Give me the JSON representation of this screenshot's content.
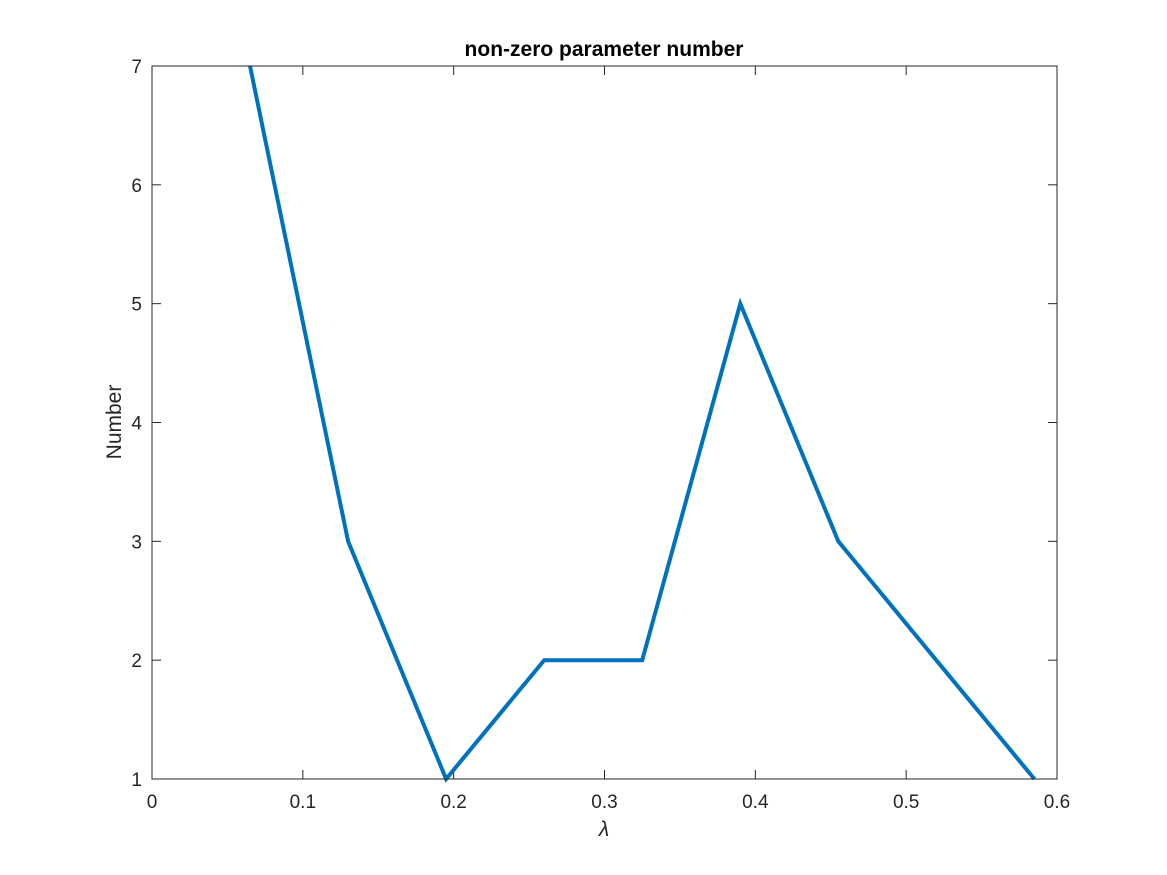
{
  "chart_data": {
    "type": "line",
    "title": "non-zero parameter number",
    "xlabel": "λ",
    "ylabel": "Number",
    "xlim": [
      0,
      0.6
    ],
    "ylim": [
      1,
      7
    ],
    "xticks": [
      0,
      0.1,
      0.2,
      0.3,
      0.4,
      0.5,
      0.6
    ],
    "xtick_labels": [
      "0",
      "0.1",
      "0.2",
      "0.3",
      "0.4",
      "0.5",
      "0.6"
    ],
    "yticks": [
      1,
      2,
      3,
      4,
      5,
      6,
      7
    ],
    "ytick_labels": [
      "1",
      "2",
      "3",
      "4",
      "5",
      "6",
      "7"
    ],
    "grid": false,
    "series": [
      {
        "color": "#0072BD",
        "x": [
          0.065,
          0.13,
          0.195,
          0.26,
          0.325,
          0.39,
          0.455,
          0.52,
          0.585
        ],
        "y": [
          7,
          3,
          1,
          2,
          2,
          5,
          3,
          2,
          1
        ]
      }
    ]
  }
}
